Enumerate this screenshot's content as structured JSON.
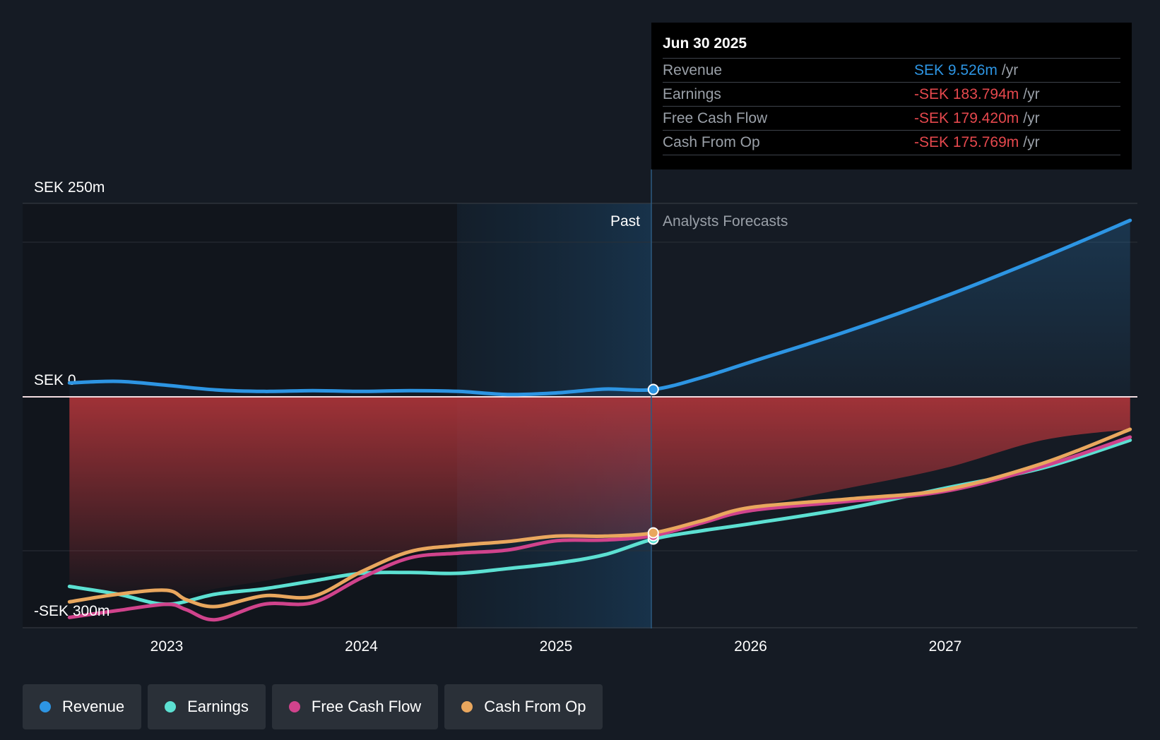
{
  "chart_data": {
    "type": "line",
    "y_axis_labels": [
      "SEK 250m",
      "SEK 0",
      "-SEK 300m"
    ],
    "ylim": [
      -300,
      250
    ],
    "x_ticks": [
      "2023",
      "2024",
      "2025",
      "2026",
      "2027"
    ],
    "past_label": "Past",
    "forecast_label": "Analysts Forecasts",
    "divider_date": 2025.5,
    "series": [
      {
        "name": "Revenue",
        "color": "#2d95e3",
        "points": [
          [
            2022.5,
            18
          ],
          [
            2022.75,
            20
          ],
          [
            2023,
            15
          ],
          [
            2023.25,
            9
          ],
          [
            2023.5,
            7
          ],
          [
            2023.75,
            8
          ],
          [
            2024,
            7
          ],
          [
            2024.25,
            8
          ],
          [
            2024.5,
            7
          ],
          [
            2024.75,
            3
          ],
          [
            2025,
            5
          ],
          [
            2025.25,
            10
          ],
          [
            2025.5,
            9.526
          ],
          [
            2025.75,
            25
          ],
          [
            2026,
            45
          ],
          [
            2026.5,
            85
          ],
          [
            2027,
            130
          ],
          [
            2027.5,
            180
          ],
          [
            2027.95,
            228
          ]
        ]
      },
      {
        "name": "Earnings",
        "color": "#5ce0d2",
        "points": [
          [
            2022.5,
            -245
          ],
          [
            2022.75,
            -255
          ],
          [
            2023,
            -268
          ],
          [
            2023.25,
            -255
          ],
          [
            2023.5,
            -248
          ],
          [
            2023.75,
            -238
          ],
          [
            2024,
            -228
          ],
          [
            2024.25,
            -227
          ],
          [
            2024.5,
            -228
          ],
          [
            2024.75,
            -222
          ],
          [
            2025,
            -215
          ],
          [
            2025.25,
            -204
          ],
          [
            2025.5,
            -183.794
          ],
          [
            2025.75,
            -173
          ],
          [
            2026,
            -164
          ],
          [
            2026.5,
            -144
          ],
          [
            2027,
            -118
          ],
          [
            2027.5,
            -92
          ],
          [
            2027.95,
            -56
          ]
        ]
      },
      {
        "name": "Free Cash Flow",
        "color": "#d0438c",
        "points": [
          [
            2022.5,
            -285
          ],
          [
            2022.75,
            -276
          ],
          [
            2023,
            -268
          ],
          [
            2023.1,
            -275
          ],
          [
            2023.25,
            -288
          ],
          [
            2023.5,
            -268
          ],
          [
            2023.75,
            -266
          ],
          [
            2024,
            -234
          ],
          [
            2024.25,
            -208
          ],
          [
            2024.5,
            -202
          ],
          [
            2024.75,
            -198
          ],
          [
            2025,
            -186
          ],
          [
            2025.25,
            -185
          ],
          [
            2025.5,
            -179.42
          ],
          [
            2025.75,
            -163
          ],
          [
            2026,
            -147
          ],
          [
            2026.5,
            -135
          ],
          [
            2027,
            -122
          ],
          [
            2027.5,
            -90
          ],
          [
            2027.95,
            -52
          ]
        ]
      },
      {
        "name": "Cash From Op",
        "color": "#e9a75e",
        "points": [
          [
            2022.5,
            -265
          ],
          [
            2022.75,
            -255
          ],
          [
            2023,
            -250
          ],
          [
            2023.1,
            -262
          ],
          [
            2023.25,
            -271
          ],
          [
            2023.5,
            -257
          ],
          [
            2023.75,
            -258
          ],
          [
            2024,
            -226
          ],
          [
            2024.25,
            -200
          ],
          [
            2024.5,
            -192
          ],
          [
            2024.75,
            -187
          ],
          [
            2025,
            -180
          ],
          [
            2025.25,
            -180
          ],
          [
            2025.5,
            -175.769
          ],
          [
            2025.75,
            -160
          ],
          [
            2026,
            -143
          ],
          [
            2026.5,
            -132
          ],
          [
            2027,
            -120
          ],
          [
            2027.5,
            -86
          ],
          [
            2027.95,
            -42
          ]
        ]
      }
    ],
    "tooltip": {
      "date": "Jun 30 2025",
      "rows": [
        {
          "label": "Revenue",
          "value": "SEK 9.526m",
          "unit": "/yr",
          "color": "#2d95e3"
        },
        {
          "label": "Earnings",
          "value": "-SEK 183.794m",
          "unit": "/yr",
          "color": "#e5484d"
        },
        {
          "label": "Free Cash Flow",
          "value": "-SEK 179.420m",
          "unit": "/yr",
          "color": "#e5484d"
        },
        {
          "label": "Cash From Op",
          "value": "-SEK 175.769m",
          "unit": "/yr",
          "color": "#e5484d"
        }
      ]
    },
    "legend": [
      {
        "label": "Revenue",
        "color": "#2d95e3"
      },
      {
        "label": "Earnings",
        "color": "#5ce0d2"
      },
      {
        "label": "Free Cash Flow",
        "color": "#d0438c"
      },
      {
        "label": "Cash From Op",
        "color": "#e9a75e"
      }
    ]
  }
}
